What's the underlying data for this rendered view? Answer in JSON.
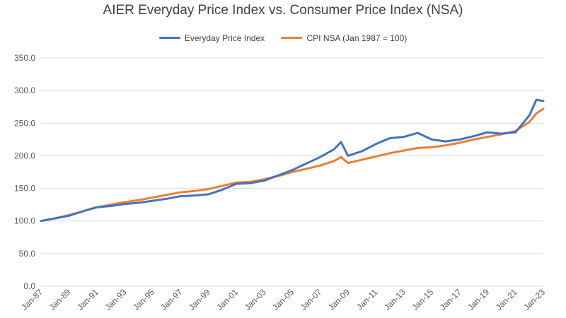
{
  "chart_data": {
    "type": "line",
    "title": "AIER Everyday Price Index vs. Consumer Price Index (NSA)",
    "xlabel": "",
    "ylabel": "",
    "ylim": [
      0,
      350
    ],
    "yticks": [
      "0.0",
      "50.0",
      "100.0",
      "150.0",
      "200.0",
      "250.0",
      "300.0",
      "350.0"
    ],
    "xticks": [
      "Jan-87",
      "Jan-89",
      "Jan-91",
      "Jan-93",
      "Jan-95",
      "Jan-97",
      "Jan-99",
      "Jan-01",
      "Jan-03",
      "Jan-05",
      "Jan-07",
      "Jan-09",
      "Jan-11",
      "Jan-13",
      "Jan-15",
      "Jan-17",
      "Jan-19",
      "Jan-21",
      "Jan-23"
    ],
    "x": [
      1987,
      1988,
      1989,
      1990,
      1991,
      1992,
      1993,
      1994,
      1995,
      1996,
      1997,
      1998,
      1999,
      2000,
      2001,
      2002,
      2003,
      2004,
      2005,
      2006,
      2007,
      2008,
      2008.5,
      2009,
      2010,
      2011,
      2012,
      2013,
      2014,
      2015,
      2016,
      2017,
      2018,
      2019,
      2020,
      2021,
      2022,
      2022.5,
      2023
    ],
    "grid": true,
    "legend": "top",
    "series": [
      {
        "name": "Everyday Price Index",
        "color": "#4472C4",
        "values": [
          100,
          104,
          108,
          115,
          121,
          123,
          126,
          128,
          131,
          134,
          138,
          139,
          141,
          148,
          157,
          158,
          162,
          170,
          178,
          188,
          198,
          210,
          221,
          200,
          207,
          218,
          227,
          229,
          235,
          225,
          222,
          225,
          230,
          236,
          234,
          236,
          262,
          286,
          284
        ]
      },
      {
        "name": "CPI NSA (Jan 1987 = 100)",
        "color": "#ED7D31",
        "values": [
          100,
          104,
          109,
          115,
          121,
          125,
          129,
          132,
          136,
          140,
          144,
          146,
          149,
          154,
          159,
          160,
          164,
          169,
          175,
          180,
          185,
          192,
          198,
          189,
          194,
          199,
          204,
          208,
          212,
          213,
          216,
          220,
          225,
          229,
          233,
          238,
          252,
          265,
          272
        ]
      }
    ]
  }
}
